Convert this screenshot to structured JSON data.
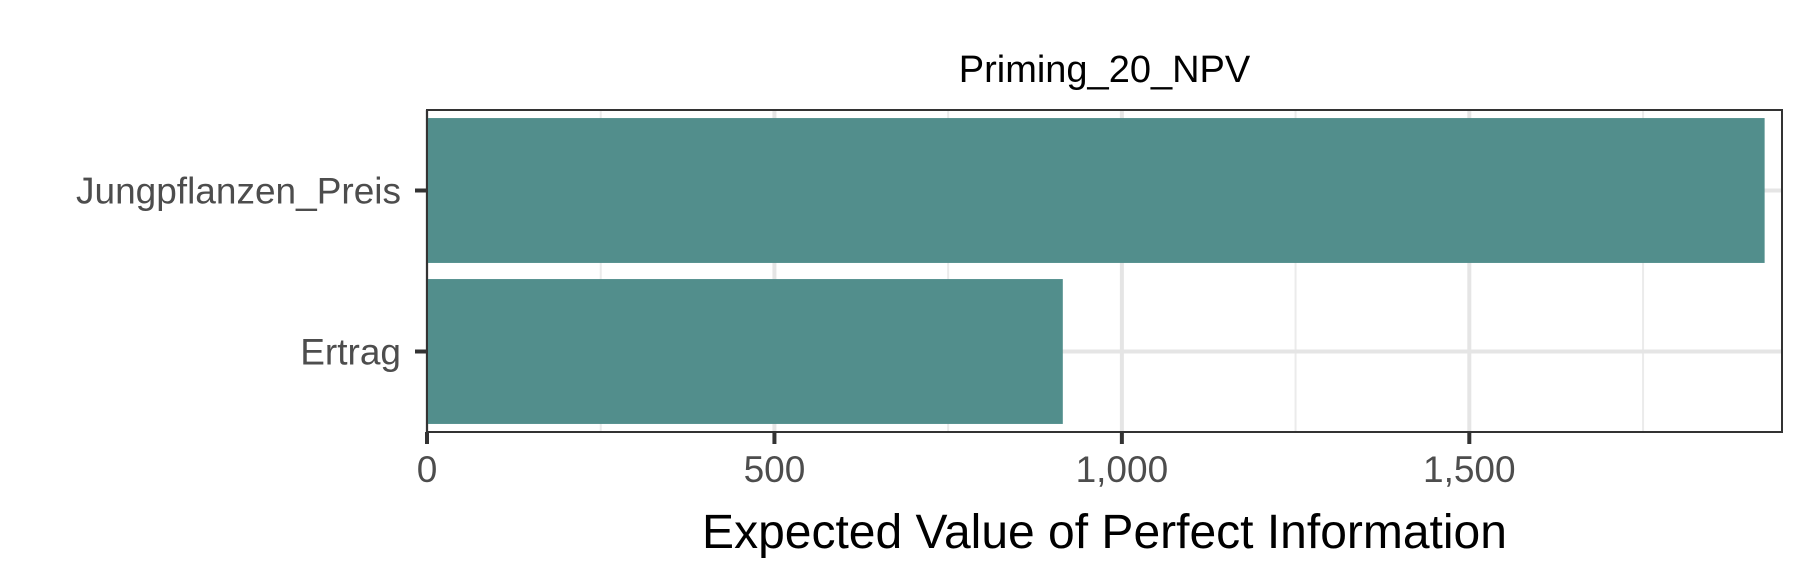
{
  "chart_data": {
    "type": "bar",
    "orientation": "horizontal",
    "title": "Priming_20_NPV",
    "xlabel": "Expected Value of Perfect Information",
    "ylabel": "",
    "categories": [
      "Jungpflanzen_Preis",
      "Ertrag"
    ],
    "values": [
      1925,
      915
    ],
    "xlim": [
      0,
      1950
    ],
    "x_ticks": [
      0,
      500,
      1000,
      1500
    ],
    "x_tick_labels": [
      "0",
      "500",
      "1,000",
      "1,500"
    ],
    "x_minor_ticks": [
      250,
      750,
      1250,
      1750
    ],
    "bar_color": "#528e8c",
    "grid": true,
    "legend": "none"
  }
}
